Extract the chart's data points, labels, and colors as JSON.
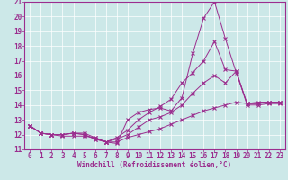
{
  "x": [
    0,
    1,
    2,
    3,
    4,
    5,
    6,
    7,
    8,
    9,
    10,
    11,
    12,
    13,
    14,
    15,
    16,
    17,
    18,
    19,
    20,
    21,
    22,
    23
  ],
  "line1": [
    12.6,
    12.1,
    12.0,
    12.0,
    12.1,
    12.1,
    11.8,
    11.5,
    11.4,
    13.0,
    13.5,
    13.7,
    13.8,
    13.6,
    14.5,
    17.5,
    19.9,
    21.0,
    18.5,
    16.2,
    14.1,
    14.1,
    14.2,
    14.2
  ],
  "line2": [
    12.6,
    12.1,
    12.0,
    12.0,
    12.1,
    12.0,
    11.7,
    11.5,
    11.8,
    12.3,
    13.0,
    13.5,
    13.9,
    14.4,
    15.5,
    16.2,
    17.0,
    18.3,
    16.4,
    16.3,
    14.1,
    14.1,
    14.2,
    14.2
  ],
  "line3": [
    12.6,
    12.1,
    12.0,
    12.0,
    12.1,
    12.0,
    11.7,
    11.5,
    11.7,
    12.0,
    12.5,
    13.0,
    13.2,
    13.5,
    14.0,
    14.8,
    15.5,
    16.0,
    15.5,
    16.3,
    14.0,
    14.0,
    14.1,
    14.1
  ],
  "line4": [
    12.6,
    12.1,
    12.0,
    11.9,
    11.9,
    11.9,
    11.8,
    11.5,
    11.5,
    11.8,
    12.0,
    12.2,
    12.4,
    12.7,
    13.0,
    13.3,
    13.6,
    13.8,
    14.0,
    14.2,
    14.1,
    14.2,
    14.2,
    14.2
  ],
  "color": "#9b2d8e",
  "bg_color": "#cce8e8",
  "grid_color": "#ffffff",
  "xlabel": "Windchill (Refroidissement éolien,°C)",
  "ylim": [
    11,
    21
  ],
  "xlim": [
    -0.5,
    23.5
  ],
  "yticks": [
    11,
    12,
    13,
    14,
    15,
    16,
    17,
    18,
    19,
    20,
    21
  ],
  "xticks": [
    0,
    1,
    2,
    3,
    4,
    5,
    6,
    7,
    8,
    9,
    10,
    11,
    12,
    13,
    14,
    15,
    16,
    17,
    18,
    19,
    20,
    21,
    22,
    23
  ],
  "xlabel_fontsize": 5.5,
  "tick_fontsize": 5.5
}
